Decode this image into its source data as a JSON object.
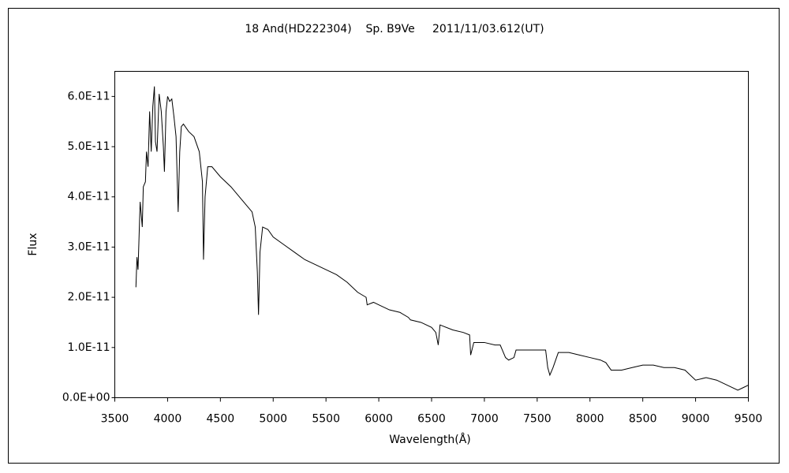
{
  "chart_data": {
    "type": "line",
    "title": "18 And(HD222304)    Sp. B9Ve     2011/11/03.612(UT)",
    "x_label": "Wavelength(Å)",
    "y_label": "Flux",
    "xlim": [
      3500,
      9500
    ],
    "xticks": [
      3500,
      4000,
      4500,
      5000,
      5500,
      6000,
      6500,
      7000,
      7500,
      8000,
      8500,
      9000,
      9500
    ],
    "ylim": [
      0,
      6.5e-11
    ],
    "yticks": [
      {
        "value": 0,
        "label": "0.0E+00"
      },
      {
        "value": 1e-11,
        "label": "1.0E-11"
      },
      {
        "value": 2e-11,
        "label": "2.0E-11"
      },
      {
        "value": 3e-11,
        "label": "3.0E-11"
      },
      {
        "value": 4e-11,
        "label": "4.0E-11"
      },
      {
        "value": 5e-11,
        "label": "5.0E-11"
      },
      {
        "value": 6e-11,
        "label": "6.0E-11"
      }
    ],
    "grid": false,
    "color": "#000000",
    "x": [
      3700,
      3710,
      3720,
      3740,
      3760,
      3770,
      3790,
      3800,
      3815,
      3830,
      3845,
      3860,
      3875,
      3885,
      3900,
      3920,
      3940,
      3960,
      3970,
      3985,
      4000,
      4020,
      4040,
      4060,
      4080,
      4100,
      4115,
      4130,
      4150,
      4200,
      4250,
      4300,
      4330,
      4340,
      4355,
      4380,
      4420,
      4500,
      4600,
      4700,
      4800,
      4830,
      4850,
      4861,
      4875,
      4900,
      4950,
      5000,
      5100,
      5200,
      5300,
      5400,
      5500,
      5600,
      5700,
      5800,
      5880,
      5890,
      5950,
      6000,
      6100,
      6200,
      6280,
      6300,
      6400,
      6500,
      6540,
      6563,
      6580,
      6700,
      6800,
      6860,
      6870,
      6900,
      7000,
      7100,
      7150,
      7180,
      7200,
      7230,
      7280,
      7300,
      7400,
      7500,
      7580,
      7600,
      7620,
      7650,
      7700,
      7800,
      7900,
      8000,
      8100,
      8150,
      8200,
      8300,
      8400,
      8500,
      8600,
      8700,
      8800,
      8900,
      9000,
      9100,
      9200,
      9300,
      9400,
      9450,
      9500
    ],
    "values": [
      2.2e-11,
      2.8e-11,
      2.55e-11,
      3.9e-11,
      3.4e-11,
      4.2e-11,
      4.3e-11,
      4.9e-11,
      4.6e-11,
      5.7e-11,
      4.9e-11,
      5.8e-11,
      6.2e-11,
      5.1e-11,
      4.9e-11,
      6.05e-11,
      5.7e-11,
      5e-11,
      4.5e-11,
      5.7e-11,
      6e-11,
      5.9e-11,
      5.95e-11,
      5.6e-11,
      5.2e-11,
      3.7e-11,
      4.9e-11,
      5.4e-11,
      5.45e-11,
      5.3e-11,
      5.2e-11,
      4.9e-11,
      4.3e-11,
      2.75e-11,
      4e-11,
      4.6e-11,
      4.6e-11,
      4.4e-11,
      4.2e-11,
      3.95e-11,
      3.7e-11,
      3.4e-11,
      2.5e-11,
      1.65e-11,
      2.9e-11,
      3.4e-11,
      3.35e-11,
      3.2e-11,
      3.05e-11,
      2.9e-11,
      2.75e-11,
      2.65e-11,
      2.55e-11,
      2.45e-11,
      2.3e-11,
      2.1e-11,
      2e-11,
      1.85e-11,
      1.9e-11,
      1.85e-11,
      1.75e-11,
      1.7e-11,
      1.6e-11,
      1.55e-11,
      1.5e-11,
      1.4e-11,
      1.3e-11,
      1.05e-11,
      1.45e-11,
      1.35e-11,
      1.3e-11,
      1.25e-11,
      8.5e-12,
      1.1e-11,
      1.1e-11,
      1.05e-11,
      1.05e-11,
      9e-12,
      8e-12,
      7.5e-12,
      8e-12,
      9.5e-12,
      9.5e-12,
      9.5e-12,
      9.5e-12,
      6e-12,
      4.5e-12,
      6e-12,
      9e-12,
      9e-12,
      8.5e-12,
      8e-12,
      7.5e-12,
      7e-12,
      5.5e-12,
      5.5e-12,
      6e-12,
      6.5e-12,
      6.5e-12,
      6e-12,
      6e-12,
      5.5e-12,
      3.5e-12,
      4e-12,
      3.5e-12,
      2.5e-12,
      1.5e-12,
      2e-12,
      2.5e-12
    ]
  }
}
